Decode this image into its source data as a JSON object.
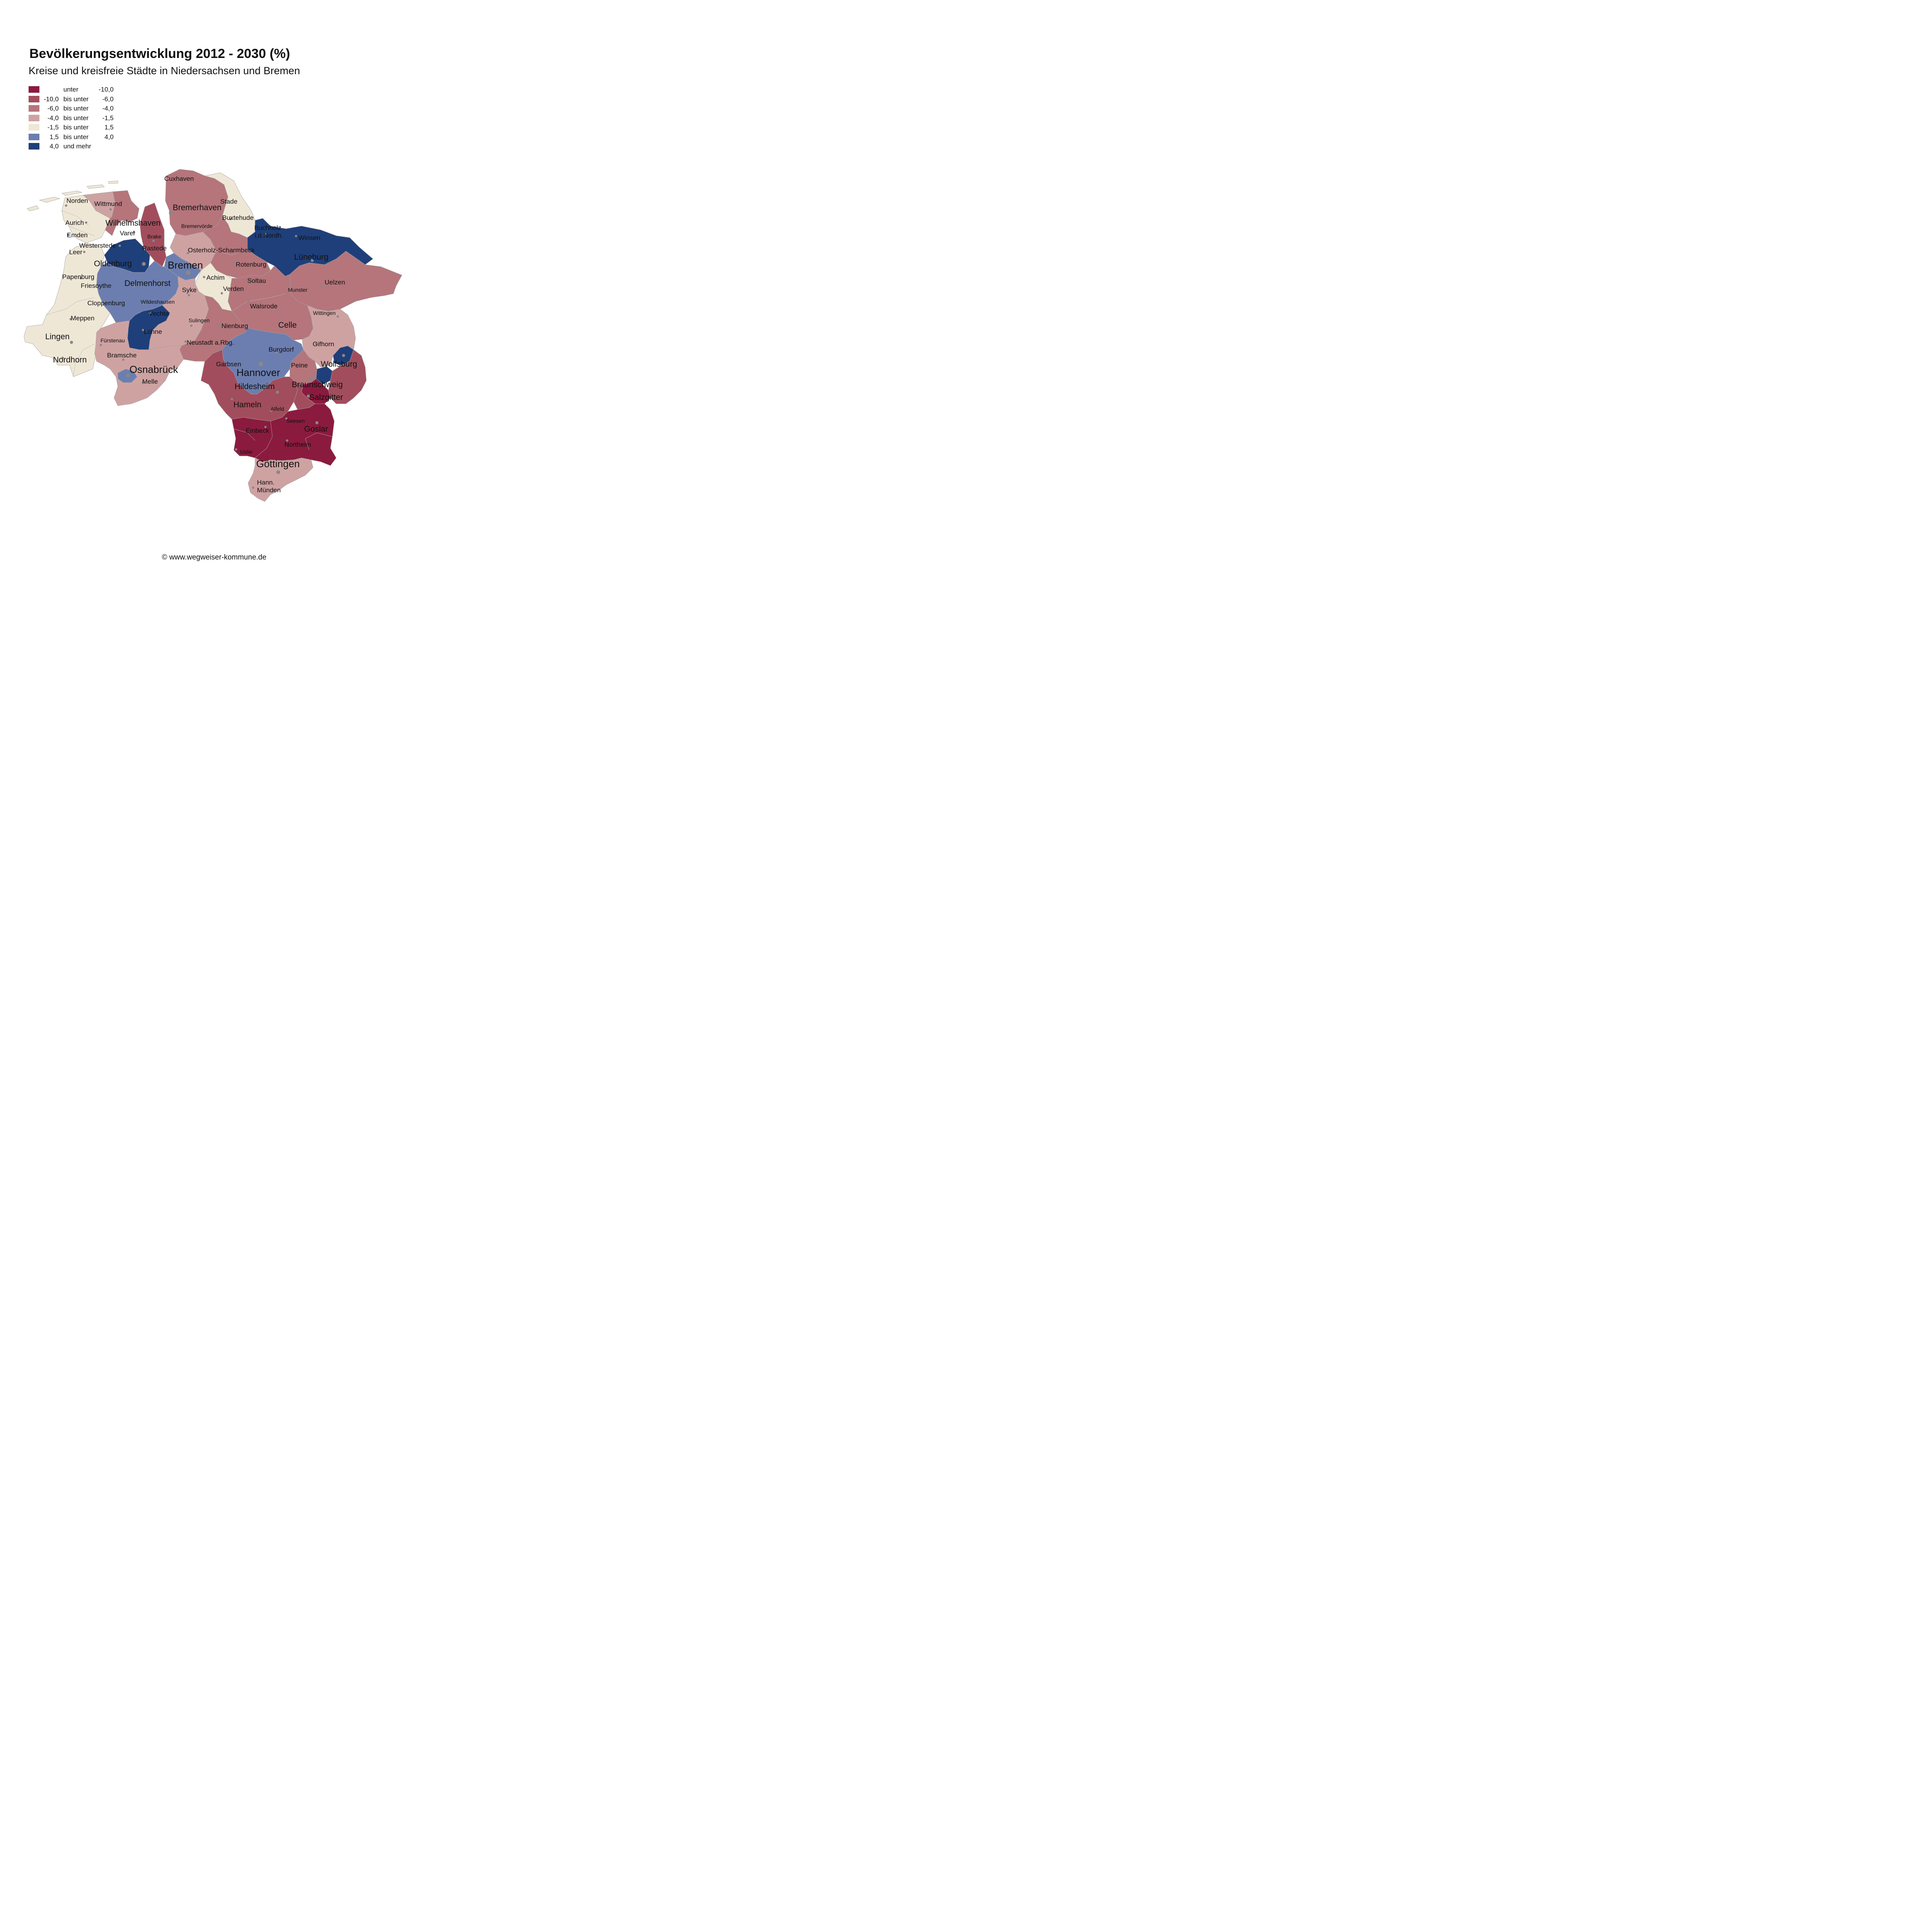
{
  "title": "Bevölkerungsentwicklung 2012 - 2030 (%)",
  "subtitle": "Kreise und kreisfreie Städte in Niedersachsen und Bremen",
  "legend": [
    {
      "from": "",
      "word": "unter",
      "to": "-10,0",
      "color": "#8b1a3f"
    },
    {
      "from": "-10,0",
      "word": "bis unter",
      "to": "-6,0",
      "color": "#a24d5d"
    },
    {
      "from": "-6,0",
      "word": "bis unter",
      "to": "-4,0",
      "color": "#b5757b"
    },
    {
      "from": "-4,0",
      "word": "bis unter",
      "to": "-1,5",
      "color": "#cfa2a2"
    },
    {
      "from": "-1,5",
      "word": "bis unter",
      "to": "1,5",
      "color": "#efe7d6"
    },
    {
      "from": "1,5",
      "word": "bis unter",
      "to": "4,0",
      "color": "#6c7eb0"
    },
    {
      "from": "4,0",
      "word": "und mehr",
      "to": "",
      "color": "#1f3f7a"
    }
  ],
  "places": [
    {
      "name": "Cuxhaven",
      "size": "m"
    },
    {
      "name": "Bremerhaven",
      "size": "l"
    },
    {
      "name": "Stade",
      "size": "m"
    },
    {
      "name": "Norden",
      "size": "m"
    },
    {
      "name": "Wittmund",
      "size": "m"
    },
    {
      "name": "Aurich",
      "size": "m"
    },
    {
      "name": "Wilhelmshaven",
      "size": "l"
    },
    {
      "name": "Buxtehude",
      "size": "m"
    },
    {
      "name": "Bremervörde",
      "size": "s"
    },
    {
      "name": "Emden",
      "size": "m"
    },
    {
      "name": "Varel",
      "size": "m"
    },
    {
      "name": "Buchholz",
      "size": "m"
    },
    {
      "name": "i.d.Nordh.",
      "size": "m"
    },
    {
      "name": "Brake",
      "size": "s"
    },
    {
      "name": "Winsen",
      "size": "m"
    },
    {
      "name": "Westerstede",
      "size": "m"
    },
    {
      "name": "Rastede",
      "size": "m"
    },
    {
      "name": "Osterholz-Scharmbeck",
      "size": "m"
    },
    {
      "name": "Leer",
      "size": "m"
    },
    {
      "name": "Lüneburg",
      "size": "l"
    },
    {
      "name": "Oldenburg",
      "size": "l"
    },
    {
      "name": "Rotenburg",
      "size": "m"
    },
    {
      "name": "Bremen",
      "size": "xl"
    },
    {
      "name": "Papenburg",
      "size": "m"
    },
    {
      "name": "Achim",
      "size": "m"
    },
    {
      "name": "Soltau",
      "size": "m"
    },
    {
      "name": "Uelzen",
      "size": "m"
    },
    {
      "name": "Delmenhorst",
      "size": "l"
    },
    {
      "name": "Friesoythe",
      "size": "m"
    },
    {
      "name": "Verden",
      "size": "m"
    },
    {
      "name": "Syke",
      "size": "m"
    },
    {
      "name": "Munster",
      "size": "s"
    },
    {
      "name": "Wildeshausen",
      "size": "s"
    },
    {
      "name": "Cloppenburg",
      "size": "m"
    },
    {
      "name": "Walsrode",
      "size": "m"
    },
    {
      "name": "Vechta",
      "size": "m"
    },
    {
      "name": "Wittingen",
      "size": "s"
    },
    {
      "name": "Meppen",
      "size": "m"
    },
    {
      "name": "Sulingen",
      "size": "s"
    },
    {
      "name": "Nienburg",
      "size": "m"
    },
    {
      "name": "Celle",
      "size": "l"
    },
    {
      "name": "Lohne",
      "size": "m"
    },
    {
      "name": "Lingen",
      "size": "l"
    },
    {
      "name": "Fürstenau",
      "size": "s"
    },
    {
      "name": "Neustadt a.Rbg.",
      "size": "m"
    },
    {
      "name": "Gifhorn",
      "size": "m"
    },
    {
      "name": "Burgdorf",
      "size": "m"
    },
    {
      "name": "Bramsche",
      "size": "m"
    },
    {
      "name": "Nordhorn",
      "size": "l"
    },
    {
      "name": "Garbsen",
      "size": "m"
    },
    {
      "name": "Peine",
      "size": "m"
    },
    {
      "name": "Wolfsburg",
      "size": "l"
    },
    {
      "name": "Osnabrück",
      "size": "xl"
    },
    {
      "name": "Hannover",
      "size": "xl"
    },
    {
      "name": "Melle",
      "size": "m"
    },
    {
      "name": "Braunschweig",
      "size": "l"
    },
    {
      "name": "Hildesheim",
      "size": "l"
    },
    {
      "name": "Salzgitter",
      "size": "l"
    },
    {
      "name": "Hameln",
      "size": "l"
    },
    {
      "name": "Alfeld",
      "size": "s"
    },
    {
      "name": "Seesen",
      "size": "s"
    },
    {
      "name": "Goslar",
      "size": "l"
    },
    {
      "name": "Einbeck",
      "size": "m"
    },
    {
      "name": "Northeim",
      "size": "m"
    },
    {
      "name": "Uslar",
      "size": "s"
    },
    {
      "name": "Göttingen",
      "size": "xl"
    },
    {
      "name": "Hann.",
      "size": "m"
    },
    {
      "name": "Münden",
      "size": "m"
    }
  ],
  "footer": "© www.wegweiser-kommune.de"
}
